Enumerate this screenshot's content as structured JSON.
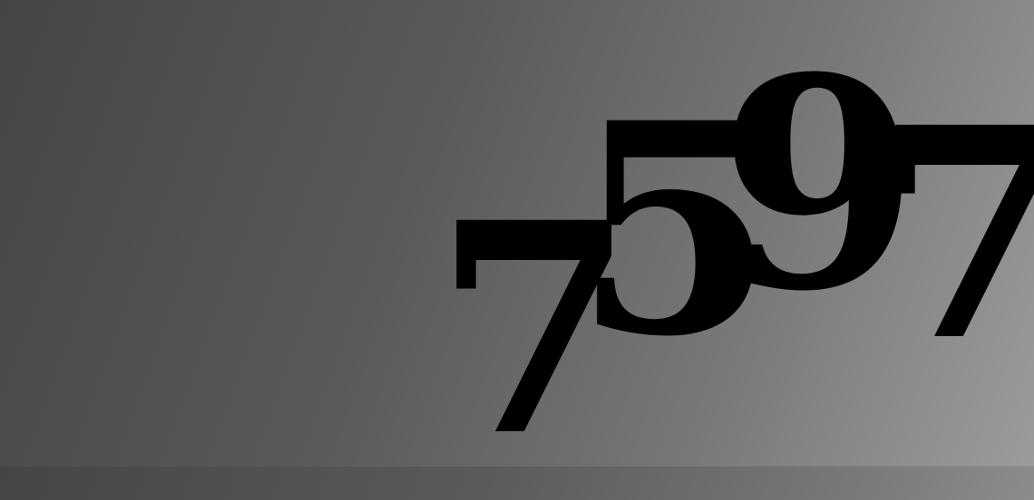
{
  "captcha": {
    "characters": [
      "7",
      "5",
      "9",
      "7"
    ],
    "text_color": "#000000",
    "background_gradient": [
      "#454545",
      "#9b9b9b"
    ]
  }
}
